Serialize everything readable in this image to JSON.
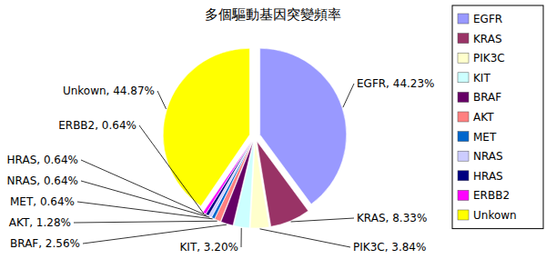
{
  "chart_data": {
    "type": "pie",
    "title": "多個驅動基因突變頻率",
    "categories": [
      "EGFR",
      "KRAS",
      "PIK3C",
      "KIT",
      "BRAF",
      "AKT",
      "MET",
      "NRAS",
      "HRAS",
      "ERBB2",
      "Unkown"
    ],
    "values": [
      44.23,
      8.33,
      3.84,
      3.2,
      2.56,
      1.28,
      0.64,
      0.64,
      0.64,
      0.64,
      44.87
    ],
    "value_labels": [
      "EGFR, 44.23%",
      "KRAS, 8.33%",
      "PIK3C, 3.84%",
      "KIT, 3.20%",
      "BRAF, 2.56%",
      "AKT, 1.28%",
      "MET, 0.64%",
      "NRAS, 0.64%",
      "HRAS, 0.64%",
      "ERBB2, 0.64%",
      "Unkown, 44.87%"
    ],
    "colors": [
      "#9999ff",
      "#993366",
      "#ffffcc",
      "#ccffff",
      "#660066",
      "#ff8080",
      "#0066cc",
      "#ccccff",
      "#000080",
      "#ff00ff",
      "#ffff00"
    ],
    "data_labels": true,
    "legend": "right"
  }
}
